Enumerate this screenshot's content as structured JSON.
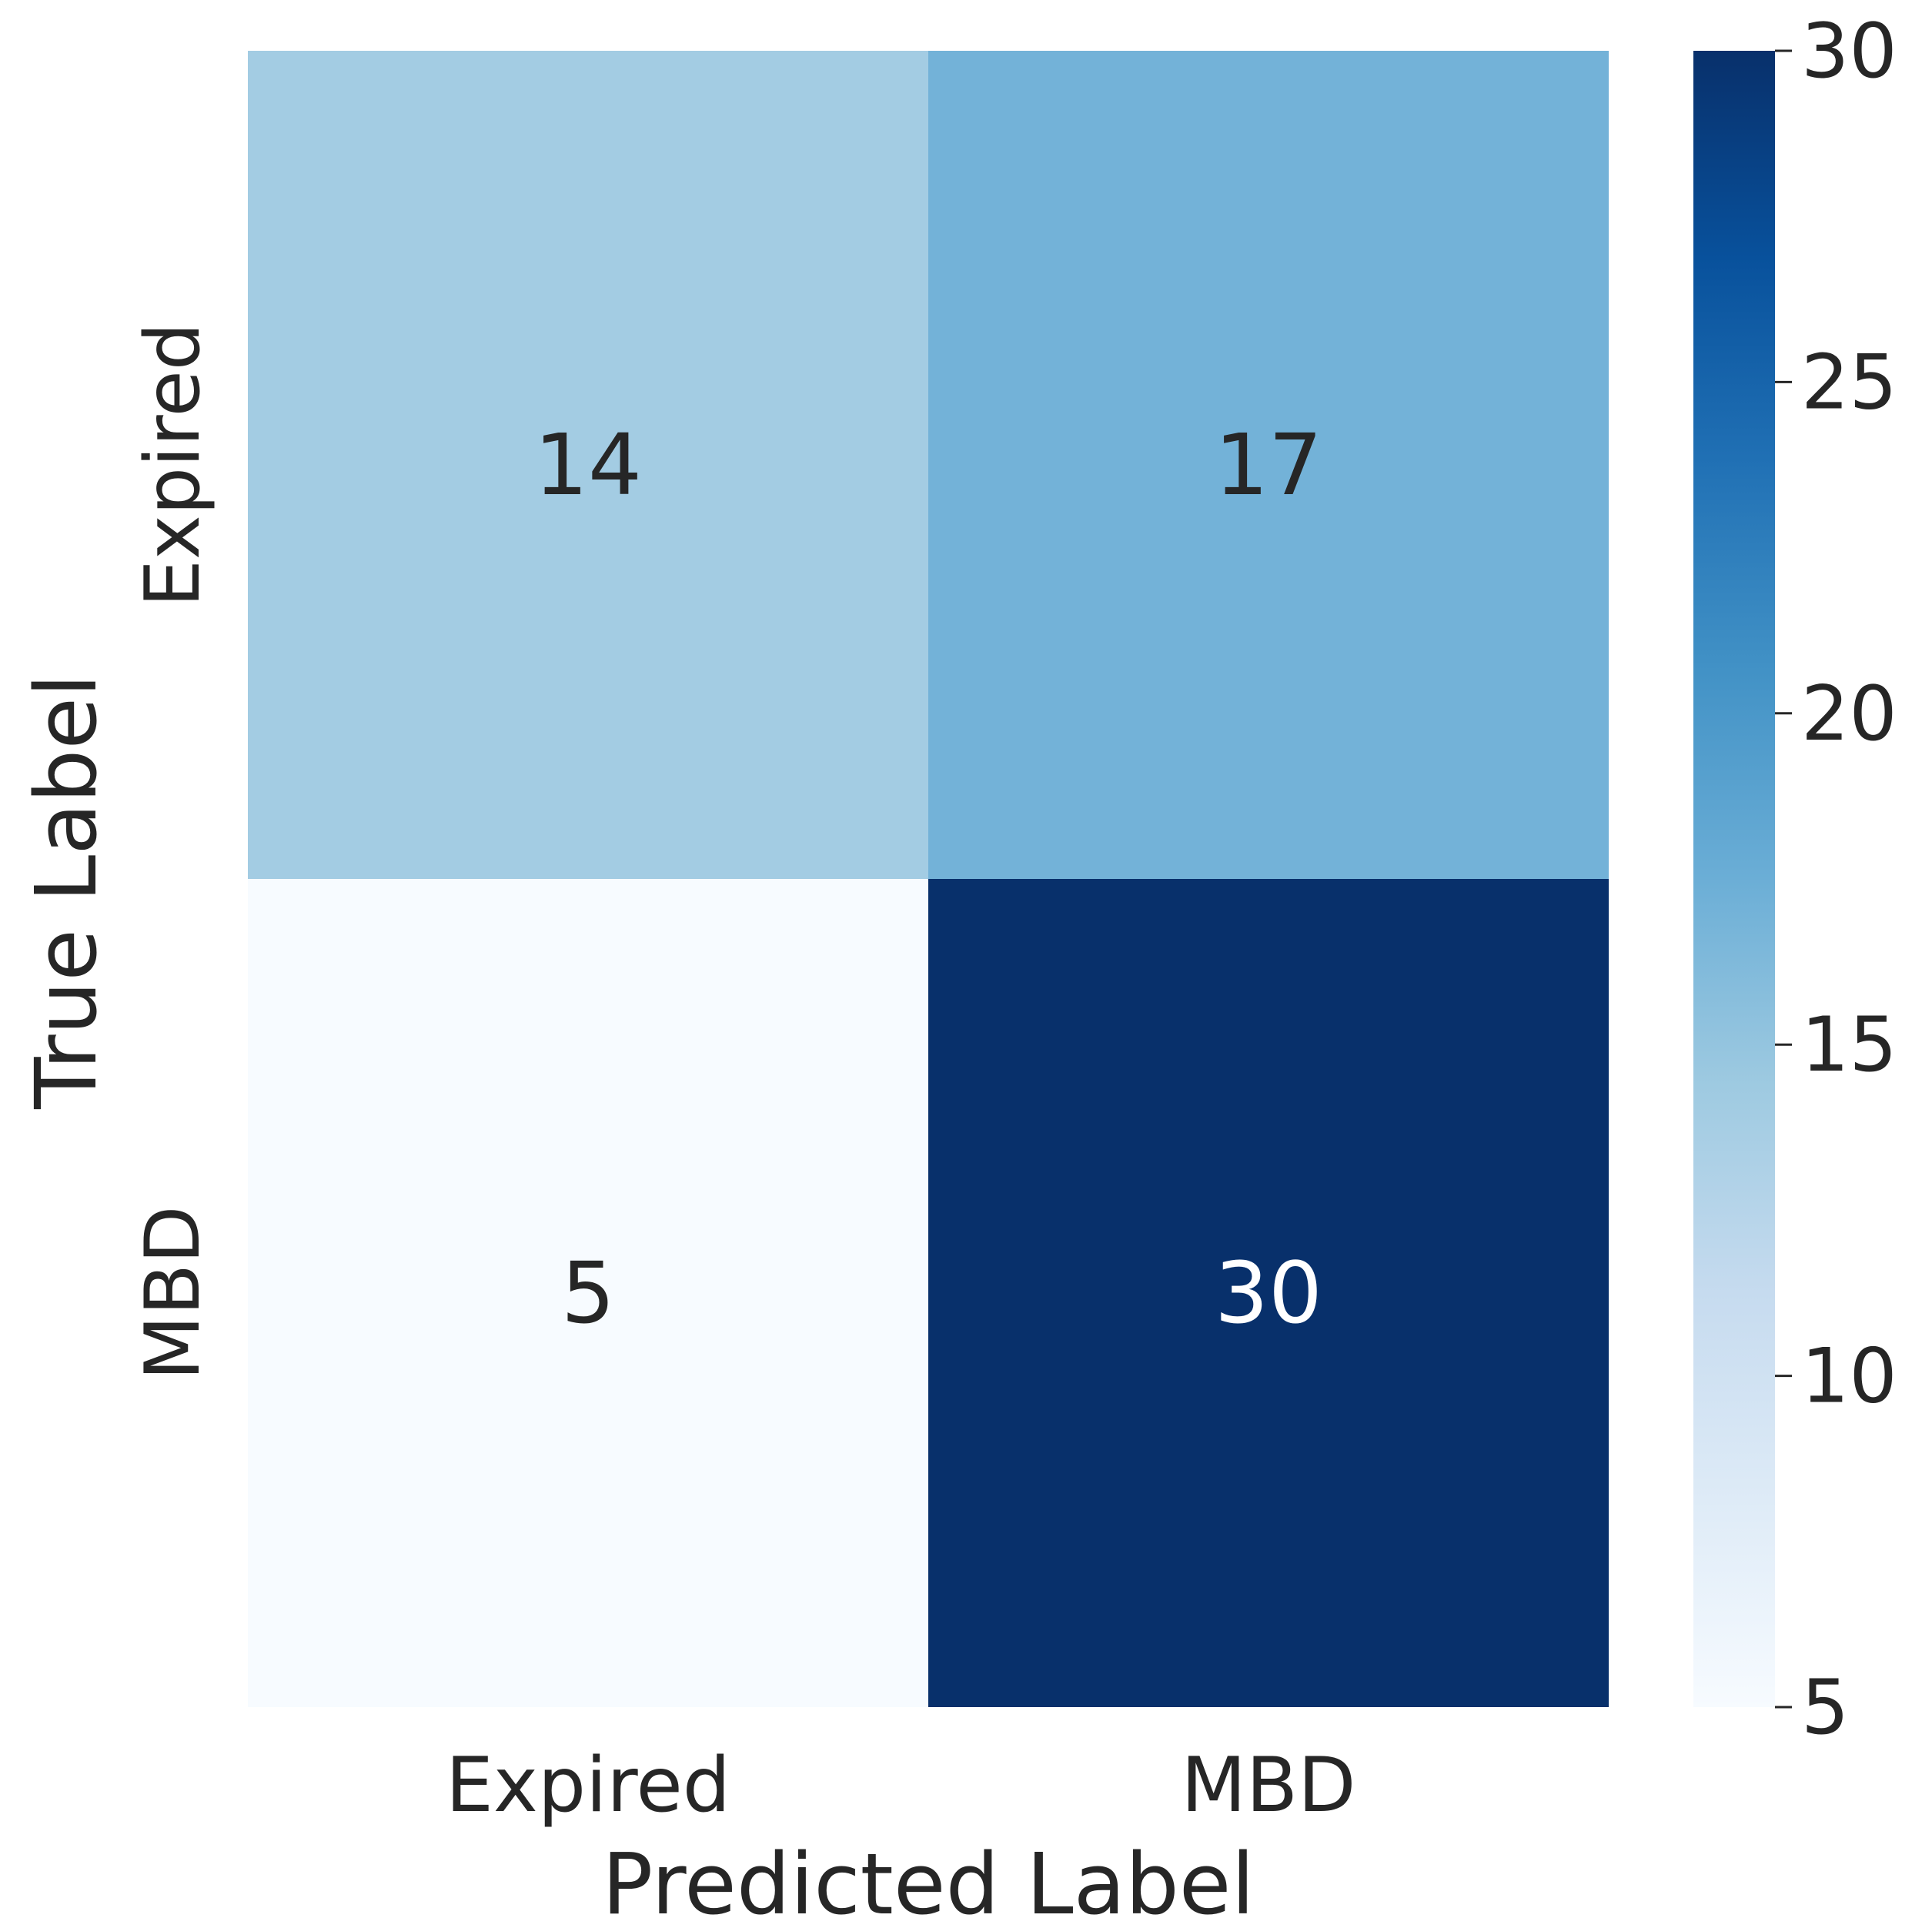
{
  "chart_data": {
    "type": "heatmap",
    "title": "",
    "xlabel": "Predicted Label",
    "ylabel": "True Label",
    "x_categories": [
      "Expired",
      "MBD"
    ],
    "y_categories": [
      "Expired",
      "MBD"
    ],
    "values": [
      [
        14,
        17
      ],
      [
        5,
        30
      ]
    ],
    "colorbar": {
      "min": 5,
      "max": 30,
      "ticks": [
        "5",
        "10",
        "15",
        "20",
        "25",
        "30"
      ],
      "colormap": "Blues",
      "stops": [
        "#f7fbff",
        "#deebf7",
        "#c6dbef",
        "#9ecae1",
        "#6baed6",
        "#4292c6",
        "#2171b5",
        "#08519c",
        "#08306b"
      ]
    },
    "annotation_colors": {
      "dark": "#262626",
      "light": "#ffffff"
    }
  }
}
